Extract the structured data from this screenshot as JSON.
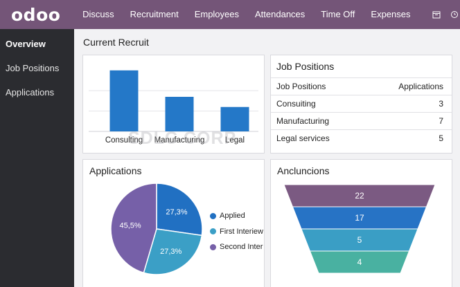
{
  "app": {
    "logo": "odoo"
  },
  "topbar": {
    "menu": [
      "Discuss",
      "Recruitment",
      "Employees",
      "Attendances",
      "Time Off",
      "Expenses"
    ],
    "icons": [
      "calendar-icon",
      "clock-icon"
    ]
  },
  "sidebar": {
    "items": [
      {
        "label": "Overview",
        "active": true
      },
      {
        "label": "Job Positions",
        "active": false
      },
      {
        "label": "Applications",
        "active": false
      }
    ]
  },
  "main": {
    "title": "Current Recruit"
  },
  "bar_card": {
    "chart_data": {
      "type": "bar",
      "categories": [
        "Consulting",
        "Manufacturing",
        "Legal"
      ],
      "values": [
        3,
        1.7,
        1.2
      ],
      "ylim": [
        0,
        3.4
      ],
      "color": "#2478c8",
      "grid": true
    }
  },
  "jobs_card": {
    "title": "Job Positions",
    "columns": [
      "Job Positions",
      "Applications"
    ],
    "rows": [
      {
        "name": "Consuiting",
        "count": "3"
      },
      {
        "name": "Manufacturing",
        "count": "7"
      },
      {
        "name": "Legal services",
        "count": "5"
      }
    ]
  },
  "apps_card": {
    "title": "Applications",
    "chart_data": {
      "type": "pie",
      "slices": [
        {
          "label": "Applied",
          "value": 27.3,
          "display": "27,3%",
          "color": "#2170c2"
        },
        {
          "label": "First Interiew",
          "value": 27.3,
          "display": "27,3%",
          "color": "#3b9fc6"
        },
        {
          "label": "Second Inter",
          "value": 45.5,
          "display": "45,5%",
          "color": "#7660a8"
        }
      ]
    }
  },
  "funnel_card": {
    "title": "Ancluncions",
    "chart_data": {
      "type": "funnel",
      "values": [
        22,
        17,
        5,
        4
      ],
      "colors": [
        "#7b5a82",
        "#2773c5",
        "#3a9ec5",
        "#49b1a1"
      ]
    }
  },
  "watermark": "SDLC CORP"
}
